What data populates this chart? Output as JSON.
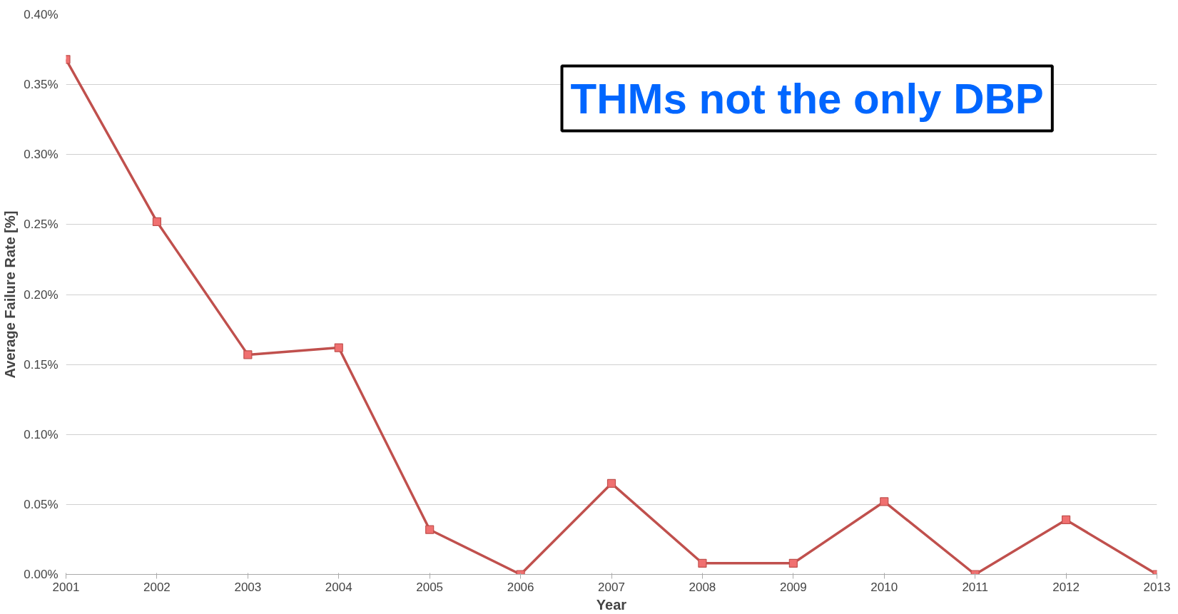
{
  "chart_data": {
    "type": "line",
    "xlabel": "Year",
    "ylabel": "Average Failure Rate [%]",
    "x": [
      2001,
      2002,
      2003,
      2004,
      2005,
      2006,
      2007,
      2008,
      2009,
      2010,
      2011,
      2012,
      2013
    ],
    "series": [
      {
        "color": "#c0504d",
        "values": [
          0.368,
          0.252,
          0.157,
          0.162,
          0.032,
          0.0,
          0.065,
          0.008,
          0.008,
          0.052,
          0.0,
          0.039,
          0.0
        ]
      }
    ],
    "xlim": [
      2001,
      2013
    ],
    "xticks": [
      2001,
      2002,
      2003,
      2004,
      2005,
      2006,
      2007,
      2008,
      2009,
      2010,
      2011,
      2012,
      2013
    ],
    "ylim": [
      0,
      0.4
    ],
    "yticks": [
      {
        "value": 0,
        "label": "0.00%"
      },
      {
        "value": 0.05,
        "label": "0.05%"
      },
      {
        "value": 0.1,
        "label": "0.10%"
      },
      {
        "value": 0.15,
        "label": "0.15%"
      },
      {
        "value": 0.2,
        "label": "0.20%"
      },
      {
        "value": 0.25,
        "label": "0.25%"
      },
      {
        "value": 0.3,
        "label": "0.30%"
      },
      {
        "value": 0.35,
        "label": "0.35%"
      },
      {
        "value": 0.4,
        "label": "0.40%"
      }
    ],
    "grid": "y",
    "marker": "square",
    "line_style": "solid",
    "annotations": [
      "THMs not the only DBP"
    ]
  }
}
